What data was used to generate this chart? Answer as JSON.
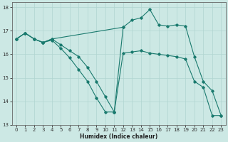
{
  "xlabel": "Humidex (Indice chaleur)",
  "bg_color": "#cce8e4",
  "grid_color": "#b0d5d0",
  "line_color": "#1a7a6e",
  "xlim": [
    -0.5,
    23.5
  ],
  "ylim": [
    13.0,
    18.2
  ],
  "xticks": [
    0,
    1,
    2,
    3,
    4,
    5,
    6,
    7,
    8,
    9,
    10,
    11,
    12,
    13,
    14,
    15,
    16,
    17,
    18,
    19,
    20,
    21,
    22,
    23
  ],
  "yticks": [
    13,
    14,
    15,
    16,
    17,
    18
  ],
  "line1_x": [
    0,
    1,
    2,
    3,
    4,
    5,
    6,
    7,
    8,
    9,
    10,
    11,
    12,
    13,
    14,
    15,
    16,
    17,
    18,
    19,
    20,
    21,
    22,
    23
  ],
  "line1_y": [
    16.65,
    16.9,
    16.65,
    16.5,
    16.65,
    16.4,
    16.15,
    15.9,
    15.45,
    14.85,
    14.2,
    13.55,
    16.05,
    16.1,
    16.15,
    16.05,
    16.0,
    15.95,
    15.9,
    15.8,
    14.85,
    14.6,
    13.4,
    13.4
  ],
  "line2_x": [
    0,
    1,
    2,
    3,
    4,
    5,
    6,
    7,
    8,
    9,
    10,
    11
  ],
  "line2_y": [
    16.65,
    16.9,
    16.65,
    16.5,
    16.6,
    16.25,
    15.85,
    15.35,
    14.85,
    14.15,
    13.55,
    13.55
  ],
  "line3_x": [
    11,
    12,
    13,
    14,
    15,
    16,
    17,
    18,
    19,
    20,
    21,
    22,
    23
  ],
  "line3_y": [
    13.55,
    17.15,
    17.45,
    17.55,
    17.9,
    17.25,
    17.2,
    17.25,
    17.2,
    15.9,
    14.85,
    14.45,
    13.4
  ],
  "line4_x": [
    0,
    1,
    2,
    3,
    4,
    12
  ],
  "line4_y": [
    16.65,
    16.9,
    16.65,
    16.5,
    16.65,
    17.15
  ]
}
